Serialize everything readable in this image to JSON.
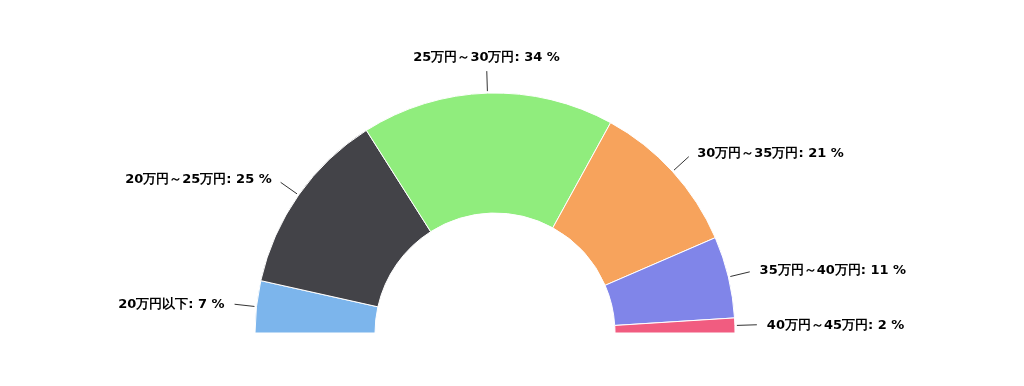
{
  "chart_data": {
    "type": "donut",
    "categories": [
      "20万円以下",
      "20万円～25万円",
      "25万円～30万円",
      "30万円～35万円",
      "35万円～40万円",
      "40万円～45万円"
    ],
    "values": [
      7,
      25,
      34,
      21,
      11,
      2
    ],
    "value_labels": [
      "7 %",
      "25 %",
      "34 %",
      "21 %",
      "11 %",
      "2 %"
    ],
    "colors": [
      "#7cb5ec",
      "#434348",
      "#90ed7d",
      "#f7a35c",
      "#8085e9",
      "#f15c80"
    ]
  }
}
